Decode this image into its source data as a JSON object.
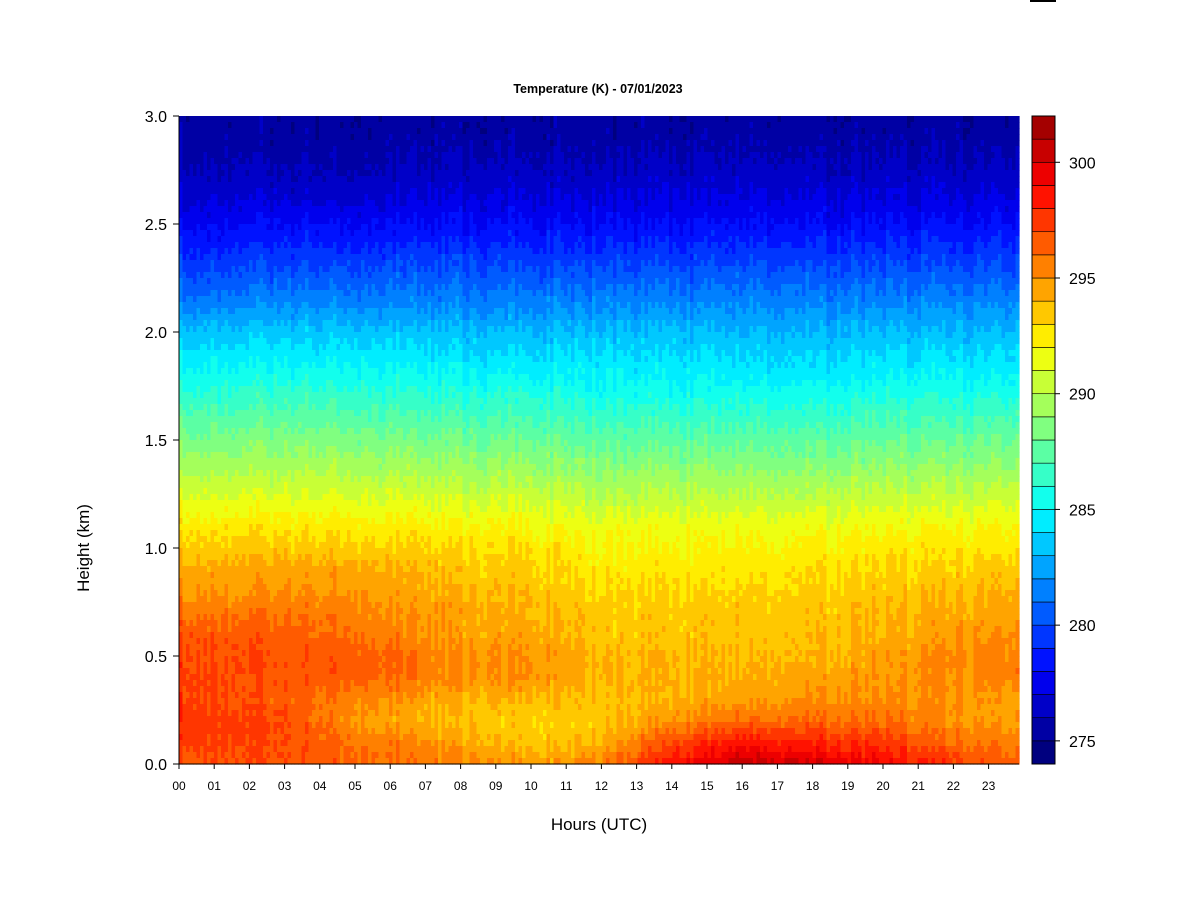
{
  "chart_data": {
    "type": "heatmap",
    "title": "Temperature (K) - 07/01/2023",
    "xlabel": "Hours (UTC)",
    "ylabel": "Height (km)",
    "x_ticks": [
      "00",
      "01",
      "02",
      "03",
      "04",
      "05",
      "06",
      "07",
      "08",
      "09",
      "10",
      "11",
      "12",
      "13",
      "14",
      "15",
      "16",
      "17",
      "18",
      "19",
      "20",
      "21",
      "22",
      "23"
    ],
    "xlim": [
      0,
      24
    ],
    "y_ticks": [
      "0.0",
      "0.5",
      "1.0",
      "1.5",
      "2.0",
      "2.5",
      "3.0"
    ],
    "ylim": [
      0,
      3.0
    ],
    "colorbar": {
      "min": 274,
      "max": 302,
      "step": 1,
      "tick_labels": [
        "275",
        "280",
        "285",
        "290",
        "295",
        "300"
      ],
      "colors": [
        "#00007f",
        "#0000a4",
        "#0000c8",
        "#0000ed",
        "#0012ff",
        "#0036ff",
        "#005bff",
        "#0080ff",
        "#00a4ff",
        "#00c8ff",
        "#00edff",
        "#12ffed",
        "#36ffc8",
        "#5bffa4",
        "#80ff80",
        "#a4ff5b",
        "#c8ff36",
        "#edff12",
        "#ffed00",
        "#ffc800",
        "#ffa400",
        "#ff8000",
        "#ff5b00",
        "#ff3600",
        "#ff1200",
        "#ed0000",
        "#c80000",
        "#a40000"
      ]
    },
    "profile_heights_km": [
      0.0,
      0.1,
      0.2,
      0.3,
      0.4,
      0.5,
      0.6,
      0.7,
      0.8,
      0.9,
      1.0,
      1.1,
      1.2,
      1.3,
      1.4,
      1.5,
      1.6,
      1.7,
      1.8,
      1.9,
      2.0,
      2.1,
      2.2,
      2.3,
      2.4,
      2.5,
      2.6,
      2.7,
      2.8,
      2.9,
      3.0
    ],
    "profiles": [
      {
        "hour": 0,
        "temps_K": [
          297.0,
          297.5,
          297.8,
          297.5,
          297.5,
          297.2,
          297.0,
          296.0,
          295.0,
          294.5,
          293.5,
          292.8,
          291.5,
          290.5,
          289.5,
          288.5,
          287.5,
          286.5,
          285.5,
          284.5,
          283.5,
          282.0,
          280.8,
          279.8,
          278.8,
          278.0,
          277.2,
          276.5,
          276.0,
          275.8,
          275.5
        ]
      },
      {
        "hour": 3,
        "temps_K": [
          296.8,
          297.0,
          297.0,
          296.5,
          296.8,
          296.8,
          296.5,
          295.8,
          295.0,
          294.5,
          293.5,
          292.5,
          291.5,
          290.5,
          289.5,
          288.5,
          287.5,
          286.5,
          285.5,
          284.5,
          283.5,
          282.2,
          281.0,
          280.0,
          279.0,
          278.0,
          277.0,
          276.3,
          275.8,
          275.5,
          275.3
        ]
      },
      {
        "hour": 5,
        "temps_K": [
          296.5,
          296.0,
          295.0,
          295.5,
          296.5,
          296.8,
          296.0,
          295.5,
          295.0,
          294.5,
          293.5,
          292.5,
          291.5,
          290.5,
          289.5,
          288.5,
          287.5,
          286.5,
          285.5,
          284.5,
          283.5,
          282.2,
          281.0,
          280.0,
          279.0,
          278.0,
          277.0,
          276.3,
          275.8,
          275.5,
          275.3
        ]
      },
      {
        "hour": 8,
        "temps_K": [
          295.5,
          294.5,
          293.5,
          294.0,
          295.0,
          295.0,
          294.5,
          294.5,
          294.0,
          293.5,
          293.0,
          292.0,
          291.0,
          290.0,
          289.0,
          288.0,
          287.0,
          286.0,
          285.0,
          284.0,
          283.2,
          282.0,
          281.0,
          280.0,
          279.0,
          278.0,
          277.2,
          276.5,
          276.0,
          275.5,
          275.3
        ]
      },
      {
        "hour": 10,
        "temps_K": [
          294.5,
          293.5,
          293.2,
          294.0,
          295.0,
          295.0,
          294.5,
          294.0,
          293.8,
          293.3,
          292.8,
          292.0,
          291.0,
          290.0,
          289.0,
          288.0,
          287.0,
          286.0,
          285.0,
          284.0,
          283.2,
          282.0,
          281.0,
          280.0,
          279.0,
          278.0,
          277.2,
          276.5,
          276.0,
          275.5,
          275.3
        ]
      },
      {
        "hour": 12,
        "temps_K": [
          295.5,
          294.0,
          293.5,
          293.5,
          294.0,
          294.0,
          293.5,
          293.5,
          293.0,
          292.5,
          292.0,
          291.5,
          290.5,
          289.5,
          288.5,
          287.5,
          286.5,
          285.5,
          284.8,
          284.0,
          283.2,
          282.0,
          281.0,
          280.0,
          279.0,
          278.0,
          277.2,
          276.5,
          276.0,
          275.5,
          275.3
        ]
      },
      {
        "hour": 14,
        "temps_K": [
          298.5,
          297.0,
          295.0,
          294.0,
          294.0,
          293.8,
          293.5,
          293.5,
          293.0,
          292.5,
          292.0,
          291.5,
          290.5,
          289.5,
          288.5,
          287.5,
          286.5,
          285.5,
          284.8,
          284.0,
          283.2,
          282.0,
          281.0,
          280.0,
          279.0,
          278.0,
          277.2,
          276.5,
          276.0,
          275.5,
          275.3
        ]
      },
      {
        "hour": 16,
        "temps_K": [
          300.5,
          298.5,
          296.0,
          294.5,
          294.0,
          293.8,
          293.5,
          293.5,
          293.0,
          292.5,
          292.0,
          291.5,
          290.5,
          289.5,
          288.5,
          287.5,
          286.5,
          285.5,
          284.5,
          283.8,
          283.0,
          282.0,
          281.0,
          280.0,
          279.0,
          278.0,
          277.2,
          276.5,
          276.0,
          275.5,
          275.3
        ]
      },
      {
        "hour": 18,
        "temps_K": [
          300.0,
          298.0,
          296.0,
          295.0,
          294.5,
          294.0,
          293.8,
          293.5,
          293.2,
          292.8,
          292.2,
          291.5,
          290.5,
          289.5,
          288.5,
          287.5,
          286.5,
          285.5,
          284.5,
          283.8,
          283.0,
          282.0,
          281.0,
          280.0,
          279.0,
          278.0,
          277.2,
          276.5,
          276.0,
          275.5,
          275.3
        ]
      },
      {
        "hour": 20,
        "temps_K": [
          299.0,
          297.5,
          296.0,
          295.0,
          294.8,
          294.5,
          294.0,
          293.8,
          293.5,
          293.0,
          292.5,
          291.8,
          290.8,
          289.8,
          288.8,
          287.8,
          286.8,
          285.8,
          284.8,
          284.0,
          283.2,
          282.0,
          281.0,
          280.0,
          279.0,
          278.0,
          277.2,
          276.5,
          276.0,
          275.5,
          275.3
        ]
      },
      {
        "hour": 22,
        "temps_K": [
          297.5,
          296.0,
          295.0,
          295.0,
          295.2,
          295.2,
          294.8,
          294.3,
          293.8,
          293.2,
          292.5,
          291.8,
          290.8,
          289.8,
          288.8,
          287.8,
          286.8,
          285.8,
          284.8,
          284.0,
          283.0,
          282.0,
          281.0,
          280.0,
          279.0,
          278.0,
          277.2,
          276.5,
          276.0,
          275.5,
          275.3
        ]
      },
      {
        "hour": 24,
        "temps_K": [
          296.0,
          295.5,
          294.5,
          294.5,
          295.5,
          295.5,
          295.0,
          294.5,
          294.0,
          293.5,
          292.5,
          291.8,
          290.8,
          289.8,
          288.8,
          287.8,
          286.8,
          285.8,
          284.8,
          284.0,
          283.0,
          282.0,
          281.0,
          280.0,
          279.0,
          278.0,
          277.2,
          276.5,
          276.0,
          275.5,
          275.3
        ]
      }
    ],
    "grid": false,
    "legend": "colorbar right"
  }
}
